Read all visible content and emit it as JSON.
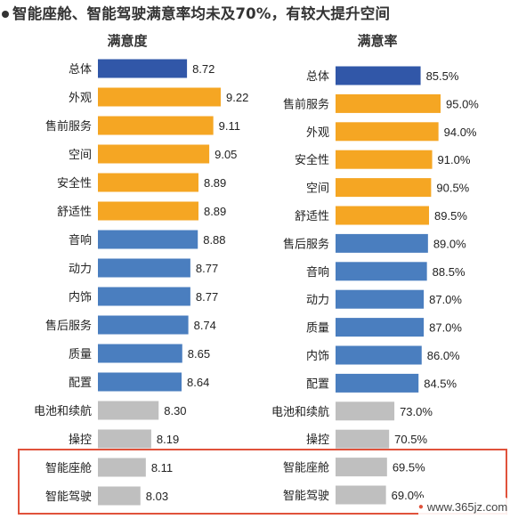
{
  "title": "智能座舱、智能驾驶满意率均未及70%，有较大提升空间",
  "watermark": "www.365jz.com",
  "colors": {
    "total": "#3157a8",
    "orange": "#f5a623",
    "blue": "#4a7ebf",
    "gray": "#bfbfbf",
    "highlight_box": "#e0523b"
  },
  "chart_data": [
    {
      "type": "bar",
      "orientation": "horizontal",
      "title": "满意度",
      "categories": [
        "总体",
        "外观",
        "售前服务",
        "空间",
        "安全性",
        "舒适性",
        "音响",
        "动力",
        "内饰",
        "售后服务",
        "质量",
        "配置",
        "电池和续航",
        "操控",
        "智能座舱",
        "智能驾驶"
      ],
      "values": [
        8.72,
        9.22,
        9.11,
        9.05,
        8.89,
        8.89,
        8.88,
        8.77,
        8.77,
        8.74,
        8.65,
        8.64,
        8.3,
        8.19,
        8.11,
        8.03
      ],
      "labels": [
        "8.72",
        "9.22",
        "9.11",
        "9.05",
        "8.89",
        "8.89",
        "8.88",
        "8.77",
        "8.77",
        "8.74",
        "8.65",
        "8.64",
        "8.30",
        "8.19",
        "8.11",
        "8.03"
      ],
      "color_groups": [
        "total",
        "orange",
        "orange",
        "orange",
        "orange",
        "orange",
        "blue",
        "blue",
        "blue",
        "blue",
        "blue",
        "blue",
        "gray",
        "gray",
        "gray",
        "gray"
      ],
      "xlim": [
        7.4,
        9.22
      ]
    },
    {
      "type": "bar",
      "orientation": "horizontal",
      "title": "满意率",
      "categories": [
        "总体",
        "售前服务",
        "外观",
        "安全性",
        "空间",
        "舒适性",
        "售后服务",
        "音响",
        "动力",
        "质量",
        "内饰",
        "配置",
        "电池和续航",
        "操控",
        "智能座舱",
        "智能驾驶"
      ],
      "values": [
        85.5,
        95.0,
        94.0,
        91.0,
        90.5,
        89.5,
        89.0,
        88.5,
        87.0,
        87.0,
        86.0,
        84.5,
        73.0,
        70.5,
        69.5,
        69.0
      ],
      "labels": [
        "85.5%",
        "95.0%",
        "94.0%",
        "91.0%",
        "90.5%",
        "89.5%",
        "89.0%",
        "88.5%",
        "87.0%",
        "87.0%",
        "86.0%",
        "84.5%",
        "73.0%",
        "70.5%",
        "69.5%",
        "69.0%"
      ],
      "color_groups": [
        "total",
        "orange",
        "orange",
        "orange",
        "orange",
        "orange",
        "blue",
        "blue",
        "blue",
        "blue",
        "blue",
        "blue",
        "gray",
        "gray",
        "gray",
        "gray"
      ],
      "xlim": [
        45,
        95
      ]
    }
  ]
}
